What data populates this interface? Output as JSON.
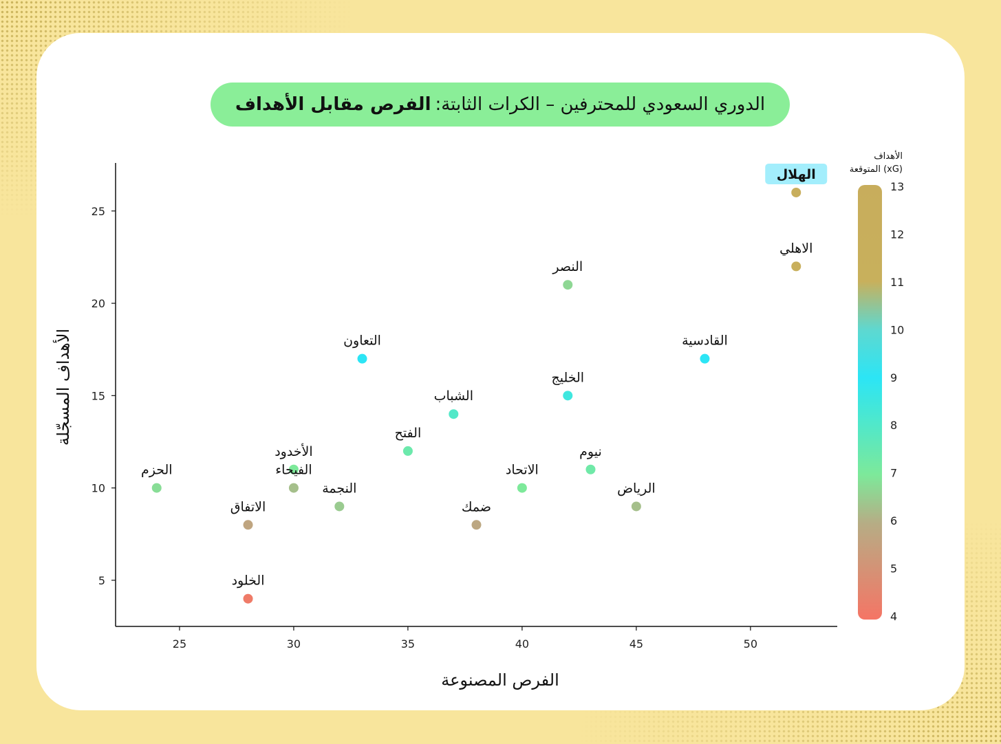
{
  "title": {
    "main": "الدوري السعودي للمحترفين – الكرات الثابتة:",
    "bold": "الفرص مقابل الأهداف"
  },
  "chart_data": {
    "type": "scatter",
    "xlabel": "الفرص المصنوعة",
    "ylabel": "الأهداف المسجّلة",
    "xlim": [
      22.2,
      53.8
    ],
    "ylim": [
      2.5,
      27.6
    ],
    "xticks": [
      25,
      30,
      35,
      40,
      45,
      50
    ],
    "yticks": [
      5,
      10,
      15,
      20,
      25
    ],
    "colorbar": {
      "title_line1": "الأهداف",
      "title_line2": "المتوقعة (xG)",
      "min": 4,
      "max": 13,
      "ticks": [
        4,
        5,
        6,
        7,
        8,
        9,
        10,
        11,
        12,
        13
      ],
      "stops": [
        {
          "v": 4,
          "color": "#f57565"
        },
        {
          "v": 6,
          "color": "#b6ad85"
        },
        {
          "v": 7,
          "color": "#7de99a"
        },
        {
          "v": 8,
          "color": "#52e8c8"
        },
        {
          "v": 9,
          "color": "#2ce5f5"
        },
        {
          "v": 10,
          "color": "#5ed8d0"
        },
        {
          "v": 11,
          "color": "#c8b05c"
        },
        {
          "v": 13,
          "color": "#c8ad5c"
        }
      ]
    },
    "highlight_color": "#a3eefc",
    "points": [
      {
        "team": "الهلال",
        "x": 52,
        "y": 26,
        "xg": 12.2,
        "highlight": true
      },
      {
        "team": "الاهلي",
        "x": 52,
        "y": 22,
        "xg": 12.0
      },
      {
        "team": "النصر",
        "x": 42,
        "y": 21,
        "xg": 6.7
      },
      {
        "team": "القادسية",
        "x": 48,
        "y": 17,
        "xg": 9.0
      },
      {
        "team": "التعاون",
        "x": 33,
        "y": 17,
        "xg": 9.0
      },
      {
        "team": "الخليج",
        "x": 42,
        "y": 15,
        "xg": 8.5
      },
      {
        "team": "الشباب",
        "x": 37,
        "y": 14,
        "xg": 8.0
      },
      {
        "team": "الفتح",
        "x": 35,
        "y": 12,
        "xg": 7.4
      },
      {
        "team": "الأخدود",
        "x": 30,
        "y": 11,
        "xg": 7.0
      },
      {
        "team": "نيوم",
        "x": 43,
        "y": 11,
        "xg": 7.3
      },
      {
        "team": "الحزم",
        "x": 24,
        "y": 10,
        "xg": 6.8
      },
      {
        "team": "الفيحاء",
        "x": 30,
        "y": 10,
        "xg": 6.3
      },
      {
        "team": "الاتحاد",
        "x": 40,
        "y": 10,
        "xg": 7.0
      },
      {
        "team": "النجمة",
        "x": 32,
        "y": 9,
        "xg": 6.5
      },
      {
        "team": "الرياض",
        "x": 45,
        "y": 9,
        "xg": 6.3
      },
      {
        "team": "الاتفاق",
        "x": 28,
        "y": 8,
        "xg": 5.7
      },
      {
        "team": "ضمك",
        "x": 38,
        "y": 8,
        "xg": 5.8
      },
      {
        "team": "الخلود",
        "x": 28,
        "y": 4,
        "xg": 4.2
      }
    ]
  }
}
